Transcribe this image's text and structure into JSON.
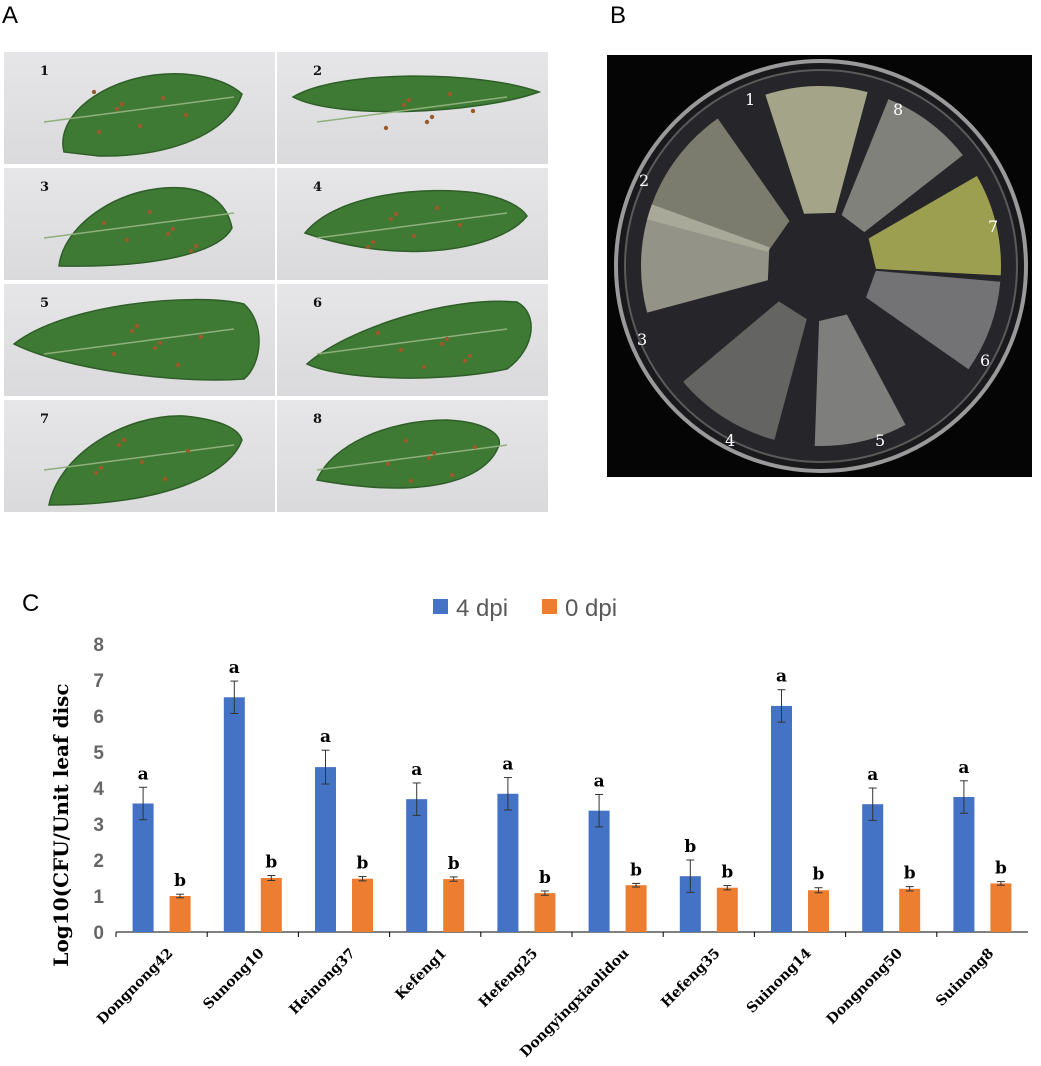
{
  "panels": {
    "a": "A",
    "b": "B",
    "c": "C"
  },
  "leaves": [
    "1",
    "2",
    "3",
    "4",
    "5",
    "6",
    "7",
    "8"
  ],
  "plate_labels": [
    "1",
    "2",
    "3",
    "4",
    "5",
    "6",
    "7",
    "8"
  ],
  "colors": {
    "series_4dpi": "#4472C4",
    "series_0dpi": "#ED7D31",
    "leaf": "#3e7a34",
    "plate_bg": "#050505"
  },
  "chart_data": {
    "type": "bar",
    "ylabel": "Log10(CFU/Unit leaf disc",
    "ylim": [
      0,
      8
    ],
    "yticks": [
      "0",
      "1",
      "2",
      "3",
      "4",
      "5",
      "6",
      "7",
      "8"
    ],
    "categories": [
      "Dongnong42",
      "Sunong10",
      "Heinong37",
      "Kefeng1",
      "Hefeng25",
      "Dongyingxiaolidou",
      "Hefeng35",
      "Suinong14",
      "Dongnong50",
      "Suinong8"
    ],
    "legend_position": "top",
    "series": [
      {
        "name": "4 dpi",
        "values": [
          3.57,
          6.52,
          4.58,
          3.69,
          3.84,
          3.37,
          1.55,
          6.28,
          3.55,
          3.75
        ],
        "errors": [
          0.45,
          0.45,
          0.47,
          0.45,
          0.45,
          0.45,
          0.45,
          0.45,
          0.45,
          0.45
        ],
        "labels": [
          "a",
          "a",
          "a",
          "a",
          "a",
          "a",
          "b",
          "a",
          "a",
          "a"
        ]
      },
      {
        "name": "0 dpi",
        "values": [
          1.0,
          1.5,
          1.48,
          1.47,
          1.08,
          1.3,
          1.23,
          1.16,
          1.2,
          1.35
        ],
        "errors": [
          0.05,
          0.07,
          0.06,
          0.06,
          0.06,
          0.05,
          0.06,
          0.07,
          0.06,
          0.05
        ],
        "labels": [
          "b",
          "b",
          "b",
          "b",
          "b",
          "b",
          "b",
          "b",
          "b",
          "b"
        ]
      }
    ]
  }
}
